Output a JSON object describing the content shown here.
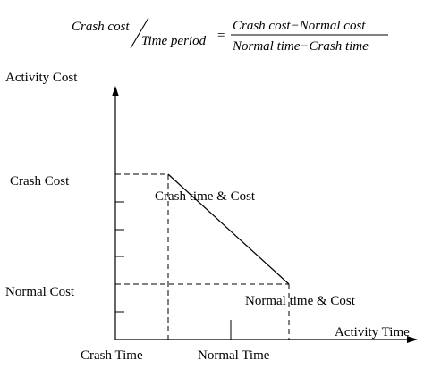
{
  "formula": {
    "lhs_numerator": "Crash cost",
    "lhs_denominator": "Time period",
    "equals": "=",
    "rhs_numerator": "Crash cost−Normal cost",
    "rhs_denominator": "Normal time−Crash time"
  },
  "axes": {
    "y_label": "Activity Cost",
    "x_label": "Activity Time",
    "y_ticks": [
      "Crash Cost",
      "Normal Cost"
    ],
    "x_ticks": [
      "Crash Time",
      "Normal Time"
    ]
  },
  "points": {
    "crash": "Crash time & Cost",
    "normal": "Normal time  & Cost"
  },
  "colors": {
    "ink": "#000000",
    "background": "#ffffff"
  }
}
